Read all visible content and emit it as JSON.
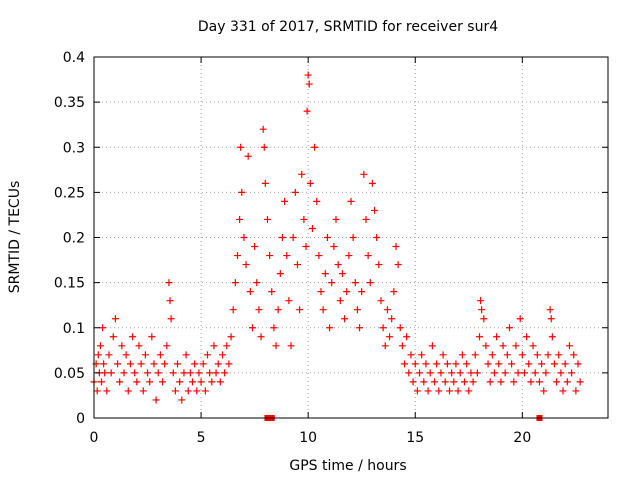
{
  "chart_data": {
    "type": "scatter",
    "title": "Day 331 of 2017, SRMTID for receiver sur4",
    "xlabel": "GPS time / hours",
    "ylabel": "SRMTID / TECUs",
    "xlim": [
      0,
      24
    ],
    "ylim": [
      0,
      0.4
    ],
    "x_ticks": [
      0,
      5,
      10,
      15,
      20
    ],
    "y_ticks": [
      0,
      0.05,
      0.1,
      0.15,
      0.2,
      0.25,
      0.3,
      0.35,
      0.4
    ],
    "y_tick_labels": [
      "0",
      "0.05",
      "0.1",
      "0.15",
      "0.2",
      "0.25",
      "0.3",
      "0.35",
      "0.4"
    ],
    "grid": true,
    "marker": "plus",
    "color": "#ff0000",
    "series": [
      {
        "name": "SRMTID",
        "points": [
          [
            0.0,
            0.04
          ],
          [
            0.1,
            0.06
          ],
          [
            0.15,
            0.03
          ],
          [
            0.2,
            0.07
          ],
          [
            0.25,
            0.05
          ],
          [
            0.3,
            0.08
          ],
          [
            0.35,
            0.04
          ],
          [
            0.4,
            0.1
          ],
          [
            0.45,
            0.06
          ],
          [
            0.5,
            0.05
          ],
          [
            0.6,
            0.03
          ],
          [
            0.7,
            0.07
          ],
          [
            0.8,
            0.05
          ],
          [
            0.9,
            0.09
          ],
          [
            1.0,
            0.11
          ],
          [
            1.1,
            0.06
          ],
          [
            1.2,
            0.04
          ],
          [
            1.3,
            0.08
          ],
          [
            1.4,
            0.05
          ],
          [
            1.5,
            0.07
          ],
          [
            1.6,
            0.03
          ],
          [
            1.7,
            0.06
          ],
          [
            1.8,
            0.09
          ],
          [
            1.9,
            0.05
          ],
          [
            2.0,
            0.04
          ],
          [
            2.1,
            0.08
          ],
          [
            2.2,
            0.06
          ],
          [
            2.3,
            0.03
          ],
          [
            2.4,
            0.07
          ],
          [
            2.5,
            0.05
          ],
          [
            2.6,
            0.04
          ],
          [
            2.7,
            0.09
          ],
          [
            2.8,
            0.06
          ],
          [
            2.9,
            0.02
          ],
          [
            3.0,
            0.05
          ],
          [
            3.1,
            0.07
          ],
          [
            3.2,
            0.04
          ],
          [
            3.3,
            0.06
          ],
          [
            3.4,
            0.08
          ],
          [
            3.5,
            0.15
          ],
          [
            3.55,
            0.13
          ],
          [
            3.6,
            0.11
          ],
          [
            3.7,
            0.05
          ],
          [
            3.8,
            0.03
          ],
          [
            3.9,
            0.06
          ],
          [
            4.0,
            0.04
          ],
          [
            4.1,
            0.02
          ],
          [
            4.2,
            0.05
          ],
          [
            4.3,
            0.07
          ],
          [
            4.4,
            0.03
          ],
          [
            4.5,
            0.05
          ],
          [
            4.6,
            0.04
          ],
          [
            4.7,
            0.06
          ],
          [
            4.8,
            0.03
          ],
          [
            4.9,
            0.05
          ],
          [
            5.0,
            0.04
          ],
          [
            5.1,
            0.06
          ],
          [
            5.2,
            0.03
          ],
          [
            5.3,
            0.07
          ],
          [
            5.4,
            0.05
          ],
          [
            5.5,
            0.04
          ],
          [
            5.6,
            0.08
          ],
          [
            5.7,
            0.05
          ],
          [
            5.8,
            0.06
          ],
          [
            5.9,
            0.04
          ],
          [
            6.0,
            0.07
          ],
          [
            6.1,
            0.05
          ],
          [
            6.2,
            0.08
          ],
          [
            6.3,
            0.06
          ],
          [
            6.4,
            0.09
          ],
          [
            6.5,
            0.12
          ],
          [
            6.6,
            0.15
          ],
          [
            6.7,
            0.18
          ],
          [
            6.8,
            0.22
          ],
          [
            6.85,
            0.3
          ],
          [
            6.9,
            0.25
          ],
          [
            7.0,
            0.2
          ],
          [
            7.1,
            0.17
          ],
          [
            7.2,
            0.29
          ],
          [
            7.3,
            0.14
          ],
          [
            7.4,
            0.1
          ],
          [
            7.5,
            0.19
          ],
          [
            7.6,
            0.15
          ],
          [
            7.7,
            0.12
          ],
          [
            7.8,
            0.09
          ],
          [
            7.9,
            0.32
          ],
          [
            7.95,
            0.3
          ],
          [
            8.0,
            0.26
          ],
          [
            8.1,
            0.22
          ],
          [
            8.2,
            0.18
          ],
          [
            8.3,
            0.14
          ],
          [
            8.4,
            0.1
          ],
          [
            8.5,
            0.08
          ],
          [
            8.6,
            0.12
          ],
          [
            8.7,
            0.16
          ],
          [
            8.8,
            0.2
          ],
          [
            8.9,
            0.24
          ],
          [
            9.0,
            0.18
          ],
          [
            9.1,
            0.13
          ],
          [
            9.2,
            0.08
          ],
          [
            9.3,
            0.2
          ],
          [
            9.4,
            0.25
          ],
          [
            9.5,
            0.17
          ],
          [
            9.6,
            0.12
          ],
          [
            9.7,
            0.27
          ],
          [
            9.8,
            0.22
          ],
          [
            9.9,
            0.19
          ],
          [
            9.95,
            0.34
          ],
          [
            10.0,
            0.38
          ],
          [
            10.05,
            0.37
          ],
          [
            10.1,
            0.26
          ],
          [
            10.2,
            0.21
          ],
          [
            10.3,
            0.3
          ],
          [
            10.4,
            0.24
          ],
          [
            10.5,
            0.18
          ],
          [
            10.6,
            0.14
          ],
          [
            10.7,
            0.12
          ],
          [
            10.8,
            0.16
          ],
          [
            10.9,
            0.2
          ],
          [
            11.0,
            0.1
          ],
          [
            11.1,
            0.15
          ],
          [
            11.2,
            0.19
          ],
          [
            11.3,
            0.22
          ],
          [
            11.4,
            0.17
          ],
          [
            11.5,
            0.13
          ],
          [
            11.6,
            0.16
          ],
          [
            11.7,
            0.11
          ],
          [
            11.8,
            0.14
          ],
          [
            11.9,
            0.18
          ],
          [
            12.0,
            0.24
          ],
          [
            12.1,
            0.2
          ],
          [
            12.2,
            0.15
          ],
          [
            12.3,
            0.12
          ],
          [
            12.4,
            0.1
          ],
          [
            12.5,
            0.14
          ],
          [
            12.6,
            0.27
          ],
          [
            12.7,
            0.22
          ],
          [
            12.8,
            0.18
          ],
          [
            12.9,
            0.15
          ],
          [
            13.0,
            0.26
          ],
          [
            13.1,
            0.23
          ],
          [
            13.2,
            0.2
          ],
          [
            13.3,
            0.17
          ],
          [
            13.4,
            0.13
          ],
          [
            13.5,
            0.1
          ],
          [
            13.6,
            0.08
          ],
          [
            13.7,
            0.12
          ],
          [
            13.8,
            0.09
          ],
          [
            13.9,
            0.11
          ],
          [
            14.0,
            0.14
          ],
          [
            14.1,
            0.19
          ],
          [
            14.2,
            0.17
          ],
          [
            14.3,
            0.1
          ],
          [
            14.4,
            0.08
          ],
          [
            14.5,
            0.06
          ],
          [
            14.6,
            0.09
          ],
          [
            14.7,
            0.05
          ],
          [
            14.8,
            0.07
          ],
          [
            14.9,
            0.04
          ],
          [
            15.0,
            0.06
          ],
          [
            15.1,
            0.03
          ],
          [
            15.2,
            0.05
          ],
          [
            15.3,
            0.07
          ],
          [
            15.4,
            0.04
          ],
          [
            15.5,
            0.06
          ],
          [
            15.6,
            0.03
          ],
          [
            15.7,
            0.05
          ],
          [
            15.8,
            0.08
          ],
          [
            15.9,
            0.04
          ],
          [
            16.0,
            0.06
          ],
          [
            16.1,
            0.03
          ],
          [
            16.2,
            0.05
          ],
          [
            16.3,
            0.07
          ],
          [
            16.4,
            0.04
          ],
          [
            16.5,
            0.06
          ],
          [
            16.6,
            0.03
          ],
          [
            16.7,
            0.05
          ],
          [
            16.8,
            0.04
          ],
          [
            16.9,
            0.06
          ],
          [
            17.0,
            0.03
          ],
          [
            17.1,
            0.05
          ],
          [
            17.2,
            0.07
          ],
          [
            17.3,
            0.04
          ],
          [
            17.4,
            0.06
          ],
          [
            17.5,
            0.03
          ],
          [
            17.6,
            0.05
          ],
          [
            17.7,
            0.04
          ],
          [
            17.8,
            0.07
          ],
          [
            17.9,
            0.05
          ],
          [
            18.0,
            0.09
          ],
          [
            18.05,
            0.13
          ],
          [
            18.1,
            0.12
          ],
          [
            18.2,
            0.11
          ],
          [
            18.3,
            0.08
          ],
          [
            18.4,
            0.06
          ],
          [
            18.5,
            0.04
          ],
          [
            18.6,
            0.07
          ],
          [
            18.7,
            0.05
          ],
          [
            18.8,
            0.09
          ],
          [
            18.9,
            0.06
          ],
          [
            19.0,
            0.04
          ],
          [
            19.1,
            0.08
          ],
          [
            19.2,
            0.05
          ],
          [
            19.3,
            0.07
          ],
          [
            19.4,
            0.1
          ],
          [
            19.5,
            0.06
          ],
          [
            19.6,
            0.04
          ],
          [
            19.7,
            0.08
          ],
          [
            19.8,
            0.05
          ],
          [
            19.9,
            0.11
          ],
          [
            20.0,
            0.07
          ],
          [
            20.1,
            0.05
          ],
          [
            20.2,
            0.09
          ],
          [
            20.3,
            0.06
          ],
          [
            20.4,
            0.04
          ],
          [
            20.5,
            0.08
          ],
          [
            20.6,
            0.05
          ],
          [
            20.7,
            0.07
          ],
          [
            20.8,
            0.04
          ],
          [
            20.9,
            0.06
          ],
          [
            21.0,
            0.03
          ],
          [
            21.1,
            0.05
          ],
          [
            21.2,
            0.07
          ],
          [
            21.3,
            0.12
          ],
          [
            21.35,
            0.11
          ],
          [
            21.4,
            0.09
          ],
          [
            21.5,
            0.06
          ],
          [
            21.6,
            0.04
          ],
          [
            21.7,
            0.07
          ],
          [
            21.8,
            0.05
          ],
          [
            21.9,
            0.03
          ],
          [
            22.0,
            0.06
          ],
          [
            22.1,
            0.04
          ],
          [
            22.2,
            0.08
          ],
          [
            22.3,
            0.05
          ],
          [
            22.4,
            0.07
          ],
          [
            22.5,
            0.03
          ],
          [
            22.6,
            0.06
          ],
          [
            22.7,
            0.04
          ]
        ]
      }
    ],
    "gap_markers_x": [
      8.1,
      8.3,
      20.8
    ]
  }
}
